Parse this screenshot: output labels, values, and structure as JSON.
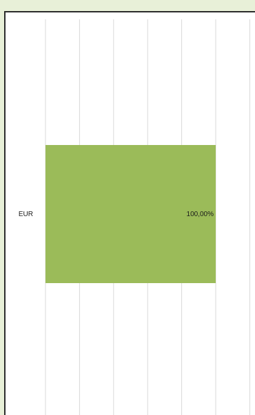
{
  "chart_data": {
    "type": "bar",
    "orientation": "horizontal",
    "categories": [
      "EUR"
    ],
    "values": [
      1.0
    ],
    "data_labels": [
      "100,00%"
    ],
    "xlim": [
      0,
      1.2
    ],
    "gridlines": true,
    "bar_color": "#9bbb59",
    "gridline_color": "#d9d9d9"
  }
}
